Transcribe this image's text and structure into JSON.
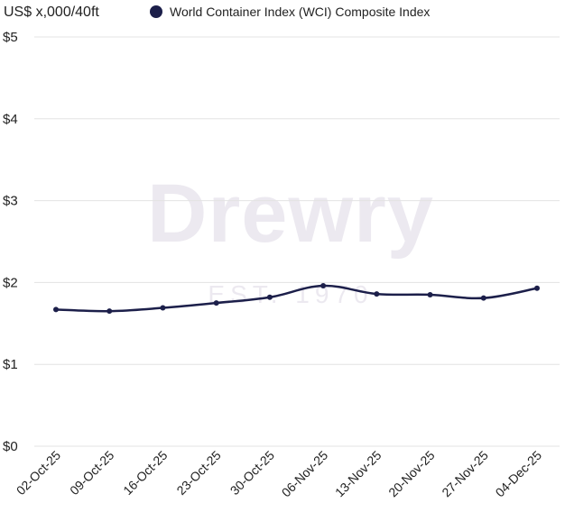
{
  "chart_data": {
    "type": "line",
    "unit_label": "US$ x,000/40ft",
    "categories": [
      "02-Oct-25",
      "09-Oct-25",
      "16-Oct-25",
      "23-Oct-25",
      "30-Oct-25",
      "06-Nov-25",
      "13-Nov-25",
      "20-Nov-25",
      "27-Nov-25",
      "04-Dec-25"
    ],
    "series": [
      {
        "name": "World Container Index (WCI) Composite Index",
        "values": [
          1.67,
          1.65,
          1.69,
          1.75,
          1.82,
          1.96,
          1.86,
          1.85,
          1.81,
          1.93
        ]
      }
    ],
    "y_ticks": [
      {
        "value": 0,
        "label": "$0"
      },
      {
        "value": 1,
        "label": "$1"
      },
      {
        "value": 2,
        "label": "$2"
      },
      {
        "value": 3,
        "label": "$3"
      },
      {
        "value": 4,
        "label": "$4"
      },
      {
        "value": 5,
        "label": "$5"
      }
    ],
    "ylim": [
      0,
      5
    ],
    "grid": true,
    "legend_position": "top",
    "line_color": "#1c1f4a",
    "watermark": {
      "main": "Drewry",
      "sub": "EST. 1970"
    }
  }
}
